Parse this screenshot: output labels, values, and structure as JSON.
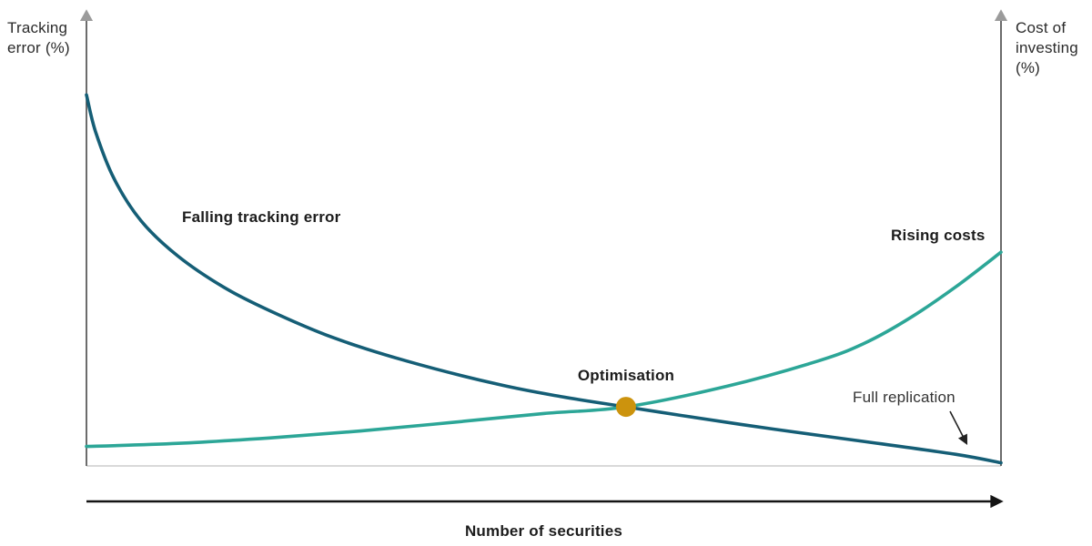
{
  "page": {
    "background": "#ffffff",
    "text_color": "#2b2b2b"
  },
  "chart_data": {
    "type": "line",
    "title": "",
    "xlabel": "Number of securities",
    "ylabel_left": "Tracking error (%)",
    "ylabel_right": "Cost of investing (%)",
    "x_range": [
      0,
      100
    ],
    "y_range": [
      0,
      100
    ],
    "x_ticks": [],
    "y_ticks": [],
    "grid": false,
    "legend": "none",
    "series": [
      {
        "name": "Falling tracking error",
        "axis": "left",
        "color": "#155e76",
        "points": [
          [
            0,
            95.5
          ],
          [
            1,
            86
          ],
          [
            3,
            74
          ],
          [
            6,
            63
          ],
          [
            10,
            54
          ],
          [
            15,
            46
          ],
          [
            20,
            40
          ],
          [
            27,
            33
          ],
          [
            35,
            27
          ],
          [
            45,
            21
          ],
          [
            52,
            17.8
          ],
          [
            59,
            15.2
          ],
          [
            65,
            13
          ],
          [
            75,
            9.5
          ],
          [
            85,
            6.3
          ],
          [
            95,
            3
          ],
          [
            100,
            0.8
          ]
        ]
      },
      {
        "name": "Rising costs",
        "axis": "right",
        "color": "#2ca697",
        "points": [
          [
            0,
            5
          ],
          [
            10,
            5.8
          ],
          [
            20,
            7.2
          ],
          [
            30,
            9
          ],
          [
            40,
            11.2
          ],
          [
            50,
            13.5
          ],
          [
            59,
            15.2
          ],
          [
            70,
            20.5
          ],
          [
            80,
            27
          ],
          [
            85,
            31.5
          ],
          [
            90,
            38
          ],
          [
            95,
            46
          ],
          [
            100,
            55
          ]
        ]
      }
    ],
    "markers": [
      {
        "label": "Optimisation",
        "x": 59,
        "y": 15.2,
        "color": "#cc930d",
        "radius": 11
      }
    ],
    "annotations": [
      {
        "label": "Full replication",
        "x": 100,
        "y": 0.8
      }
    ],
    "axis_style": {
      "axis_line_color": "#474747",
      "axis_arrowhead_color": "#9b9b9b",
      "baseline_color": "#c2c2c2",
      "x_arrow_color": "#141414"
    }
  }
}
